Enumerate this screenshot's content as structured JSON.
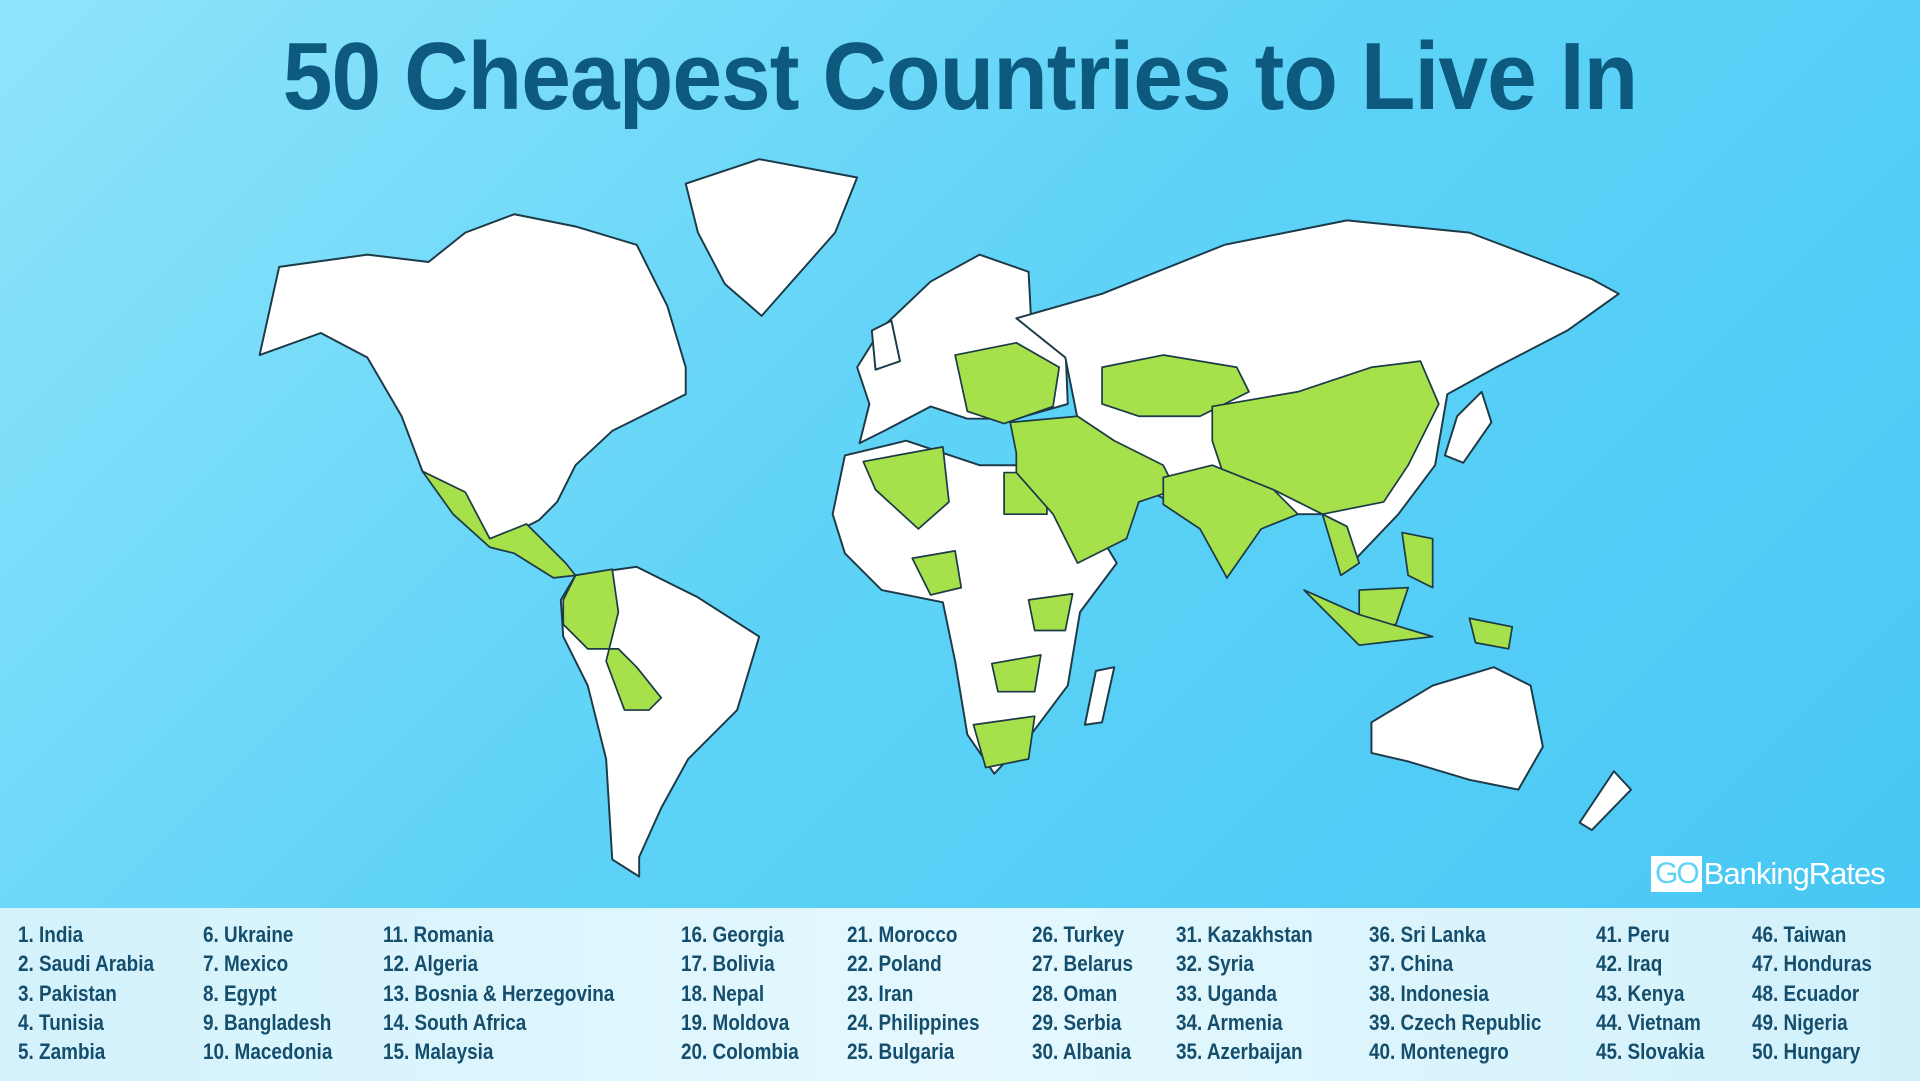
{
  "title": "50 Cheapest Countries to Live In",
  "logo": {
    "go": "GO",
    "rest": "BankingRates"
  },
  "colors": {
    "highlight": "#a6e04a",
    "land": "#ffffff",
    "ocean": "#5fd3f7",
    "title": "#0e5a7f"
  },
  "countries": [
    [
      "1. India",
      "2. Saudi Arabia",
      "3. Pakistan",
      "4. Tunisia",
      "5. Zambia"
    ],
    [
      "6. Ukraine",
      "7. Mexico",
      "8. Egypt",
      "9. Bangladesh",
      "10. Macedonia"
    ],
    [
      "11. Romania",
      "12. Algeria",
      "13. Bosnia & Herzegovina",
      "14. South Africa",
      "15. Malaysia"
    ],
    [
      "16. Georgia",
      "17. Bolivia",
      "18. Nepal",
      "19. Moldova",
      "20. Colombia"
    ],
    [
      "21. Morocco",
      "22. Poland",
      "23. Iran",
      "24. Philippines",
      "25. Bulgaria"
    ],
    [
      "26. Turkey",
      "27. Belarus",
      "28. Oman",
      "29. Serbia",
      "30. Albania"
    ],
    [
      "31. Kazakhstan",
      "32. Syria",
      "33. Uganda",
      "34. Armenia",
      "35. Azerbaijan"
    ],
    [
      "36. Sri Lanka",
      "37. China",
      "38. Indonesia",
      "39. Czech Republic",
      "40. Montenegro"
    ],
    [
      "41. Peru",
      "42. Iraq",
      "43. Kenya",
      "44. Vietnam",
      "45. Slovakia"
    ],
    [
      "46. Taiwan",
      "47. Honduras",
      "48. Ecuador",
      "49. Nigeria",
      "50. Hungary"
    ]
  ]
}
